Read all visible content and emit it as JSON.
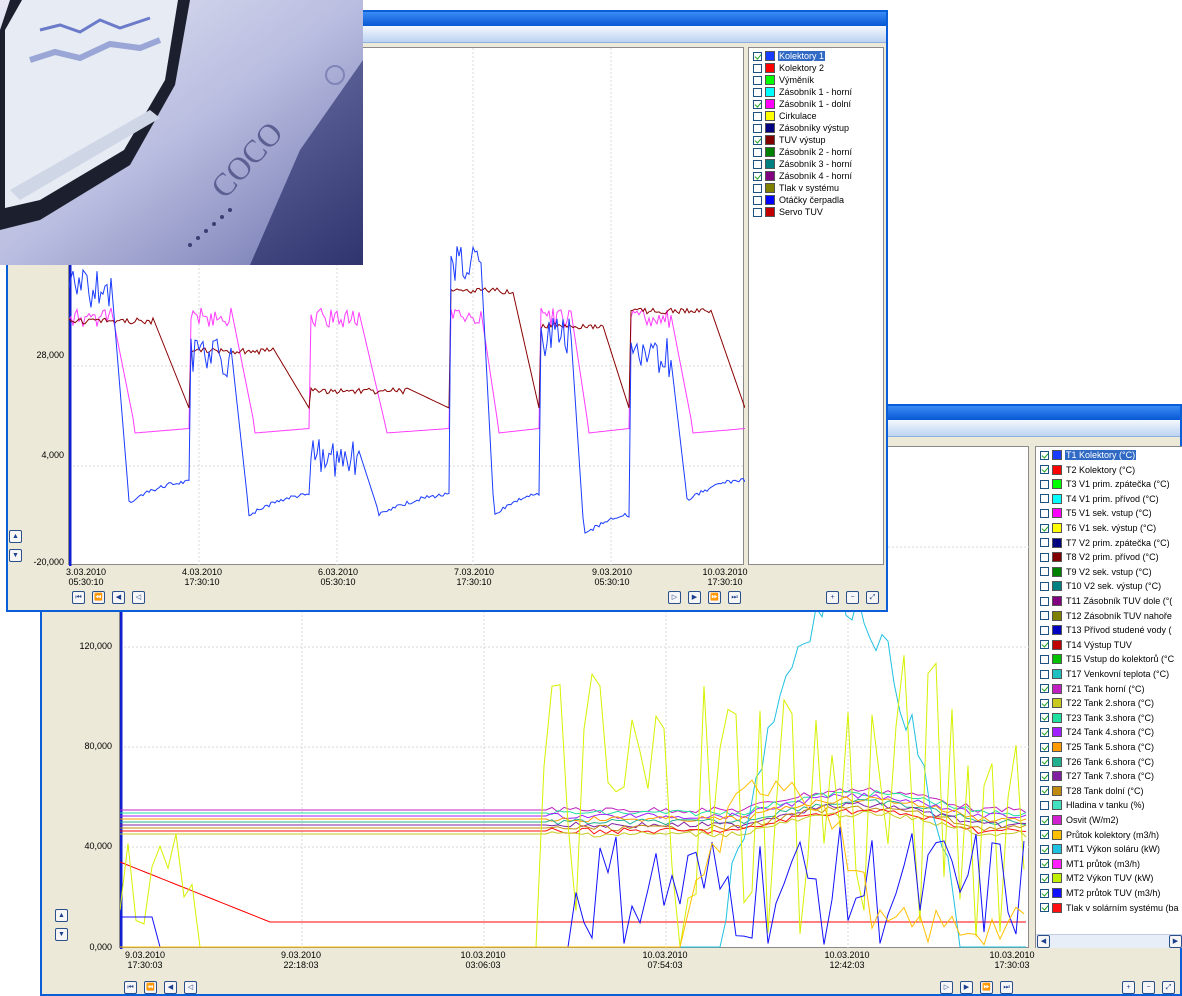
{
  "colors": {
    "window_border": "#0a5fd8",
    "title_blue": "#0857d4",
    "selected": "#316ac5"
  },
  "window1": {
    "y_ticks": [
      "28,000",
      "4,000",
      "-20,000"
    ],
    "x_ticks": [
      {
        "date": "3.03.2010",
        "time": "05:30:10"
      },
      {
        "date": "4.03.2010",
        "time": "17:30:10"
      },
      {
        "date": "6.03.2010",
        "time": "05:30:10"
      },
      {
        "date": "7.03.2010",
        "time": "17:30:10"
      },
      {
        "date": "9.03.2010",
        "time": "05:30:10"
      },
      {
        "date": "10.03.2010",
        "time": "17:30:10"
      }
    ],
    "legend": [
      {
        "label": "Kolektory 1",
        "color": "#1a3cff",
        "checked": true,
        "selected": true
      },
      {
        "label": "Kolektory 2",
        "color": "#ff0000",
        "checked": false
      },
      {
        "label": "Výměník",
        "color": "#00ff00",
        "checked": false
      },
      {
        "label": "Zásobník 1 - horní",
        "color": "#00ffff",
        "checked": false
      },
      {
        "label": "Zásobník 1 - dolní",
        "color": "#ff00ff",
        "checked": true
      },
      {
        "label": "Cirkulace",
        "color": "#ffff00",
        "checked": false
      },
      {
        "label": "Zásobníky výstup",
        "color": "#000080",
        "checked": false
      },
      {
        "label": "TUV výstup",
        "color": "#800000",
        "checked": true
      },
      {
        "label": "Zásobník 2 - horní",
        "color": "#008000",
        "checked": false
      },
      {
        "label": "Zásobník 3 - horní",
        "color": "#008080",
        "checked": false
      },
      {
        "label": "Zásobník 4 - horní",
        "color": "#800080",
        "checked": true
      },
      {
        "label": "Tlak v systému",
        "color": "#808000",
        "checked": false
      },
      {
        "label": "Otáčky čerpadla",
        "color": "#0000ff",
        "checked": false
      },
      {
        "label": "Servo TUV",
        "color": "#c00000",
        "checked": false
      }
    ]
  },
  "window2": {
    "y_ticks": [
      "120,000",
      "80,000",
      "40,000",
      "0,000"
    ],
    "x_ticks": [
      {
        "date": "9.03.2010",
        "time": "17:30:03"
      },
      {
        "date": "9.03.2010",
        "time": "22:18:03"
      },
      {
        "date": "10.03.2010",
        "time": "03:06:03"
      },
      {
        "date": "10.03.2010",
        "time": "07:54:03"
      },
      {
        "date": "10.03.2010",
        "time": "12:42:03"
      },
      {
        "date": "10.03.2010",
        "time": "17:30:03"
      }
    ],
    "legend": [
      {
        "label": "T1 Kolektory (°C)",
        "color": "#1a3cff",
        "checked": true,
        "selected": true
      },
      {
        "label": "T2 Kolektory (°C)",
        "color": "#ff0000",
        "checked": true
      },
      {
        "label": "T3 V1 prim. zpátečka (°C)",
        "color": "#00ff00",
        "checked": false
      },
      {
        "label": "T4 V1 prim. přívod (°C)",
        "color": "#00ffff",
        "checked": false
      },
      {
        "label": "T5 V1 sek. vstup (°C)",
        "color": "#ff00ff",
        "checked": false
      },
      {
        "label": "T6 V1 sek. výstup (°C)",
        "color": "#ffff00",
        "checked": true
      },
      {
        "label": "T7 V2 prim. zpátečka (°C)",
        "color": "#000080",
        "checked": false
      },
      {
        "label": "T8 V2 prim. přívod (°C)",
        "color": "#800000",
        "checked": false
      },
      {
        "label": "T9 V2 sek. vstup (°C)",
        "color": "#008000",
        "checked": false
      },
      {
        "label": "T10 V2 sek. výstup (°C)",
        "color": "#008080",
        "checked": false
      },
      {
        "label": "T11 Zásobník TUV dole (°(",
        "color": "#800080",
        "checked": false
      },
      {
        "label": "T12 Zásobník TUV nahoře",
        "color": "#808000",
        "checked": false
      },
      {
        "label": "T13 Přívod studené vody (",
        "color": "#0000c0",
        "checked": false
      },
      {
        "label": "T14 Výstup TUV",
        "color": "#c00000",
        "checked": true
      },
      {
        "label": "T15 Vstup do kolektorů (°C",
        "color": "#00c000",
        "checked": false
      },
      {
        "label": "T17 Venkovní teplota (°C)",
        "color": "#20c0c0",
        "checked": false
      },
      {
        "label": "T21 Tank horní (°C)",
        "color": "#c020c0",
        "checked": true
      },
      {
        "label": "T22 Tank 2.shora (°C)",
        "color": "#c8c820",
        "checked": true
      },
      {
        "label": "T23 Tank 3.shora (°C)",
        "color": "#20e0a0",
        "checked": true
      },
      {
        "label": "T24 Tank 4.shora (°C)",
        "color": "#a020ff",
        "checked": true
      },
      {
        "label": "T25 Tank 5.shora (°C)",
        "color": "#ff9a00",
        "checked": true
      },
      {
        "label": "T26 Tank 6.shora (°C)",
        "color": "#20b090",
        "checked": true
      },
      {
        "label": "T27 Tank 7.shora (°C)",
        "color": "#8020a0",
        "checked": true
      },
      {
        "label": "T28 Tank dolní  (°C)",
        "color": "#c08a10",
        "checked": true
      },
      {
        "label": "Hladina v tanku (%)",
        "color": "#40e0c0",
        "checked": false
      },
      {
        "label": "Osvit (W/m2)",
        "color": "#d020d0",
        "checked": true
      },
      {
        "label": "Průtok kolektory (m3/h)",
        "color": "#ffc000",
        "checked": true
      },
      {
        "label": "MT1 Výkon soláru (kW)",
        "color": "#20c0e0",
        "checked": true
      },
      {
        "label": "MT1 průtok (m3/h)",
        "color": "#ff20ff",
        "checked": true
      },
      {
        "label": "MT2 Výkon TUV (kW)",
        "color": "#c0f000",
        "checked": true
      },
      {
        "label": "MT2 průtok TUV (m3/h)",
        "color": "#1010ff",
        "checked": true
      },
      {
        "label": "Tlak v solárním systému (ba",
        "color": "#ff1010",
        "checked": true
      }
    ]
  },
  "monitor": {
    "brand_text": "COCO"
  }
}
